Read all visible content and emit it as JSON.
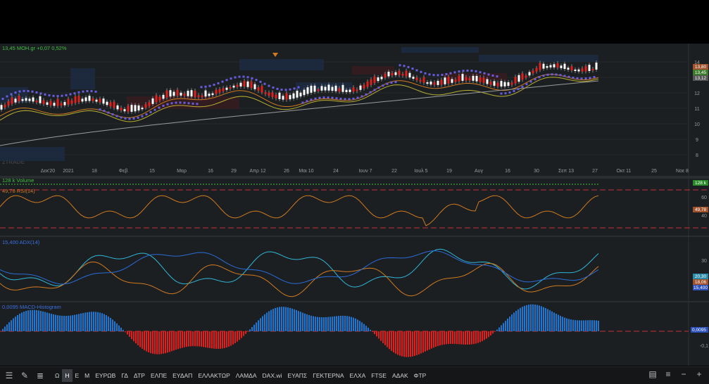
{
  "main_chart": {
    "header": "13,45 ΜΟΗ.gr +0,07 0,52%",
    "y_ticks": [
      "14",
      "13",
      "12",
      "11",
      "10",
      "9",
      "8"
    ],
    "price_tags": [
      {
        "label": "13,80",
        "color": "#a0522d"
      },
      {
        "label": "13,45",
        "color": "#3a7a2a"
      },
      {
        "label": "13,12",
        "color": "#555555"
      }
    ],
    "x_ticks": [
      "Δεκ'20",
      "2021",
      "18",
      "Φεβ",
      "15",
      "Μαρ",
      "16",
      "29",
      "Απρ 12",
      "26",
      "Μαι 10",
      "24",
      "Ιουν 7",
      "22",
      "Ιουλ 5",
      "19",
      "Αυγ",
      "16",
      "30",
      "Σεπ 13",
      "27",
      "Οκτ 11",
      "25",
      "Νοε 8"
    ],
    "watermark": "2TRADE"
  },
  "volume": {
    "label": "128 k Volume",
    "tag": "128 k"
  },
  "rsi": {
    "label": "49,78 RSI(14)",
    "ticks": [
      "60",
      "40"
    ],
    "tag": "49,78"
  },
  "adx": {
    "label": "15,400 ADX(14)",
    "ticks": [
      "30",
      "10"
    ],
    "tags": [
      "20,30",
      "18,06",
      "15,400"
    ]
  },
  "macd": {
    "label": "0,0095 MACD-Histogram",
    "ticks": [
      "-0,1"
    ],
    "tag": "0,0095"
  },
  "colors": {
    "up": "#1f77d4",
    "down": "#e0201c",
    "rsi": "#d07a20",
    "adx": "#2a6cd8",
    "plus_di": "#2fb6d8",
    "minus_di": "#d07a20",
    "psar": "#6a5ce0"
  },
  "toolbar": {
    "icons": [
      "menu-bars",
      "pencil",
      "list"
    ],
    "buttons": [
      "Ω",
      "Η",
      "Ε",
      "Μ",
      "ΕΥΡΩΒ",
      "ΓΔ",
      "ΔΤΡ",
      "ΕΛΠΕ",
      "ΕΥΔΑΠ",
      "ΕΛΛΑΚΤΩΡ",
      "ΛΑΜΔΑ",
      "DAX.wi",
      "ΕΥΑΠΣ",
      "ΓΕΚΤΕΡΝΑ",
      "ΕΛΧΑ",
      "FTSE",
      "ΑΔΑΚ",
      "ΦΤΡ"
    ],
    "active": "Η"
  }
}
